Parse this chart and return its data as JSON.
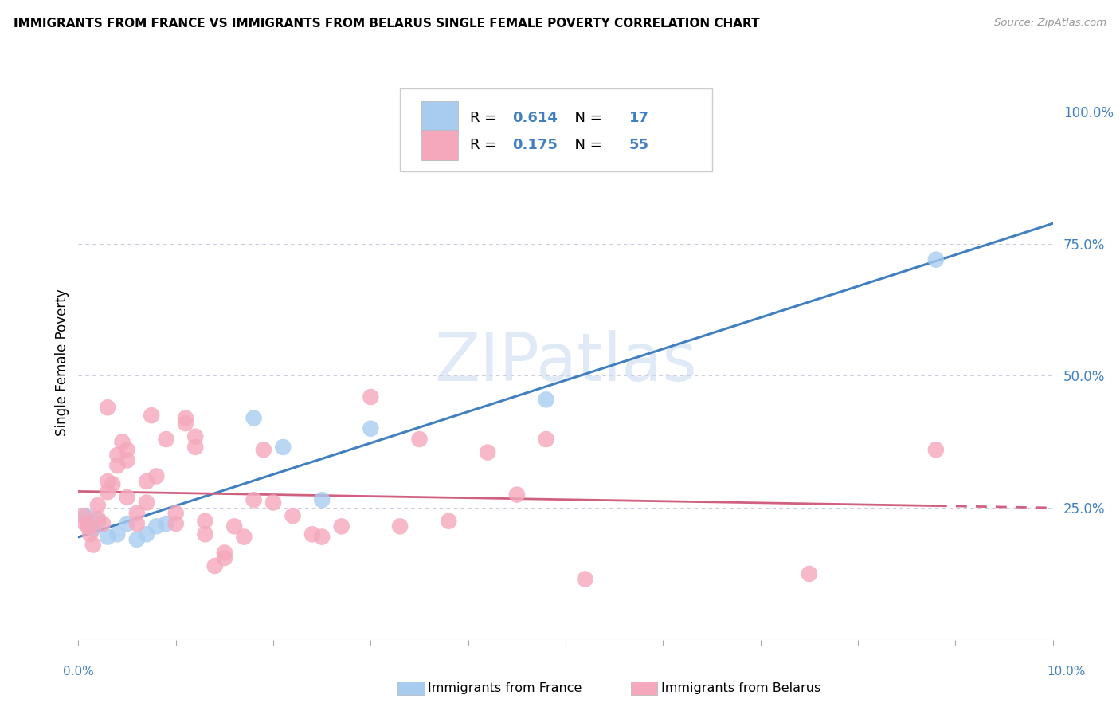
{
  "title": "IMMIGRANTS FROM FRANCE VS IMMIGRANTS FROM BELARUS SINGLE FEMALE POVERTY CORRELATION CHART",
  "source": "Source: ZipAtlas.com",
  "ylabel": "Single Female Poverty",
  "yticks": [
    0.0,
    0.25,
    0.5,
    0.75,
    1.0
  ],
  "ytick_labels": [
    "",
    "25.0%",
    "50.0%",
    "75.0%",
    "100.0%"
  ],
  "xlim": [
    0.0,
    0.1
  ],
  "ylim": [
    0.0,
    1.05
  ],
  "france_R": "0.614",
  "france_N": "17",
  "belarus_R": "0.175",
  "belarus_N": "55",
  "france_color": "#A8CCF0",
  "belarus_color": "#F5A8BC",
  "france_line_color": "#4080C0",
  "belarus_line_color": "#D06080",
  "legend_text_color": "#4080C0",
  "watermark": "ZIPatlas",
  "grid_color": "#CCCCDD",
  "tick_color": "#AAAAAA",
  "france_x": [
    0.0008,
    0.001,
    0.0015,
    0.002,
    0.003,
    0.004,
    0.005,
    0.006,
    0.007,
    0.008,
    0.009,
    0.018,
    0.021,
    0.025,
    0.03,
    0.048,
    0.088
  ],
  "france_y": [
    0.235,
    0.22,
    0.21,
    0.225,
    0.195,
    0.2,
    0.22,
    0.19,
    0.2,
    0.215,
    0.22,
    0.42,
    0.365,
    0.265,
    0.4,
    0.455,
    0.72
  ],
  "belarus_x": [
    0.0005,
    0.0007,
    0.001,
    0.0012,
    0.0015,
    0.002,
    0.002,
    0.0025,
    0.003,
    0.003,
    0.003,
    0.0035,
    0.004,
    0.004,
    0.0045,
    0.005,
    0.005,
    0.005,
    0.006,
    0.006,
    0.007,
    0.007,
    0.0075,
    0.008,
    0.009,
    0.01,
    0.01,
    0.011,
    0.011,
    0.012,
    0.012,
    0.013,
    0.013,
    0.014,
    0.015,
    0.015,
    0.016,
    0.017,
    0.018,
    0.019,
    0.02,
    0.022,
    0.024,
    0.025,
    0.027,
    0.03,
    0.033,
    0.035,
    0.038,
    0.042,
    0.045,
    0.048,
    0.052,
    0.075,
    0.088
  ],
  "belarus_y": [
    0.235,
    0.22,
    0.215,
    0.2,
    0.18,
    0.255,
    0.23,
    0.22,
    0.28,
    0.44,
    0.3,
    0.295,
    0.35,
    0.33,
    0.375,
    0.36,
    0.34,
    0.27,
    0.24,
    0.22,
    0.3,
    0.26,
    0.425,
    0.31,
    0.38,
    0.24,
    0.22,
    0.42,
    0.41,
    0.385,
    0.365,
    0.225,
    0.2,
    0.14,
    0.165,
    0.155,
    0.215,
    0.195,
    0.265,
    0.36,
    0.26,
    0.235,
    0.2,
    0.195,
    0.215,
    0.46,
    0.215,
    0.38,
    0.225,
    0.355,
    0.275,
    0.38,
    0.115,
    0.125,
    0.36
  ]
}
